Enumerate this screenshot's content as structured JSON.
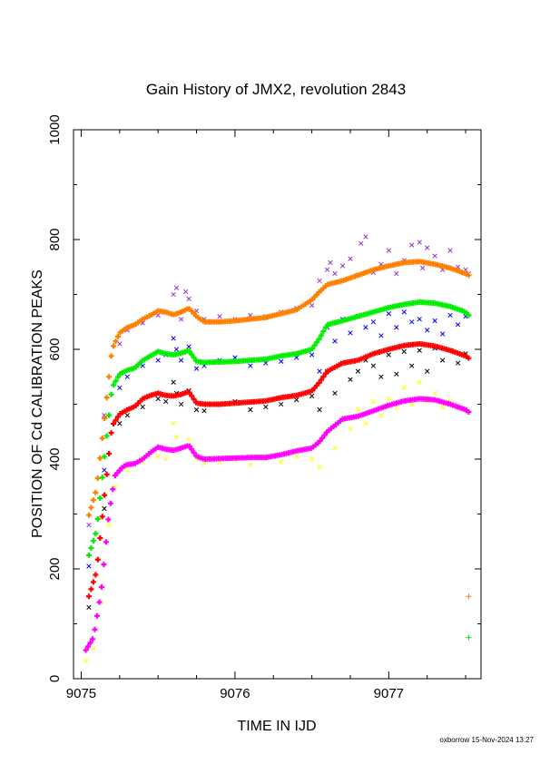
{
  "chart_data": {
    "type": "scatter",
    "title": "Gain History of JMX2, revolution 2843",
    "xlabel": "TIME IN IJD",
    "ylabel": "POSITION OF Cd CALIBRATION PEAKS",
    "xlim": [
      9074.95,
      9077.6
    ],
    "ylim": [
      0,
      1000
    ],
    "xticks": [
      9075,
      9076,
      9077
    ],
    "yticks": [
      0,
      200,
      400,
      600,
      800,
      1000
    ],
    "footer": "oxborrow 15-Nov-2024 13:27",
    "fit_lines": [
      {
        "color": "#ff8000",
        "x": [
          9075.05,
          9075.1,
          9075.15,
          9075.2,
          9075.25,
          9075.3,
          9075.35,
          9075.4,
          9075.45,
          9075.5,
          9075.55,
          9075.6,
          9075.65,
          9075.7,
          9075.75,
          9075.8,
          9075.9,
          9076.0,
          9076.1,
          9076.2,
          9076.3,
          9076.4,
          9076.5,
          9076.55,
          9076.6,
          9076.7,
          9076.8,
          9076.9,
          9077.0,
          9077.1,
          9077.2,
          9077.3,
          9077.4,
          9077.5,
          9077.52
        ],
        "y": [
          298,
          345,
          470,
          600,
          630,
          640,
          645,
          655,
          662,
          670,
          668,
          663,
          668,
          675,
          660,
          650,
          650,
          652,
          655,
          658,
          665,
          672,
          690,
          705,
          718,
          725,
          735,
          745,
          752,
          758,
          760,
          755,
          748,
          738,
          735
        ]
      },
      {
        "color": "#00ee00",
        "x": [
          9075.05,
          9075.1,
          9075.15,
          9075.2,
          9075.25,
          9075.3,
          9075.35,
          9075.4,
          9075.45,
          9075.5,
          9075.55,
          9075.6,
          9075.65,
          9075.7,
          9075.75,
          9075.8,
          9075.9,
          9076.0,
          9076.1,
          9076.2,
          9076.3,
          9076.4,
          9076.5,
          9076.55,
          9076.6,
          9076.7,
          9076.8,
          9076.9,
          9077.0,
          9077.1,
          9077.2,
          9077.3,
          9077.4,
          9077.5,
          9077.52
        ],
        "y": [
          225,
          270,
          400,
          530,
          555,
          562,
          566,
          580,
          588,
          596,
          592,
          590,
          593,
          598,
          578,
          576,
          577,
          578,
          580,
          582,
          588,
          592,
          600,
          620,
          645,
          652,
          660,
          668,
          676,
          682,
          686,
          684,
          678,
          668,
          662
        ]
      },
      {
        "color": "#ff0000",
        "x": [
          9075.05,
          9075.1,
          9075.15,
          9075.2,
          9075.25,
          9075.3,
          9075.35,
          9075.4,
          9075.45,
          9075.5,
          9075.55,
          9075.6,
          9075.65,
          9075.7,
          9075.75,
          9075.8,
          9075.9,
          9076.0,
          9076.1,
          9076.2,
          9076.3,
          9076.4,
          9076.5,
          9076.55,
          9076.6,
          9076.7,
          9076.8,
          9076.9,
          9077.0,
          9077.1,
          9077.2,
          9077.3,
          9077.4,
          9077.5,
          9077.52
        ],
        "y": [
          150,
          195,
          330,
          460,
          482,
          490,
          496,
          510,
          516,
          520,
          516,
          515,
          518,
          523,
          502,
          500,
          500,
          502,
          504,
          506,
          512,
          516,
          524,
          540,
          560,
          575,
          580,
          592,
          600,
          607,
          610,
          606,
          598,
          588,
          584
        ]
      },
      {
        "color": "#ff00ff",
        "x": [
          9075.03,
          9075.08,
          9075.13,
          9075.18,
          9075.22,
          9075.27,
          9075.3,
          9075.35,
          9075.4,
          9075.45,
          9075.5,
          9075.55,
          9075.6,
          9075.65,
          9075.7,
          9075.75,
          9075.8,
          9075.9,
          9076.0,
          9076.1,
          9076.2,
          9076.3,
          9076.4,
          9076.5,
          9076.55,
          9076.6,
          9076.7,
          9076.8,
          9076.9,
          9077.0,
          9077.1,
          9077.2,
          9077.3,
          9077.4,
          9077.5,
          9077.52
        ],
        "y": [
          52,
          75,
          160,
          300,
          370,
          386,
          390,
          392,
          400,
          412,
          422,
          418,
          416,
          420,
          425,
          405,
          400,
          401,
          402,
          403,
          403,
          408,
          415,
          420,
          432,
          450,
          473,
          478,
          488,
          498,
          506,
          510,
          508,
          500,
          490,
          486
        ]
      }
    ],
    "scatter_points": [
      {
        "color": "#9932cc",
        "x": [
          9075.05,
          9075.15,
          9075.25,
          9075.3,
          9075.4,
          9075.5,
          9075.55,
          9075.6,
          9075.62,
          9075.65,
          9075.68,
          9075.7,
          9075.75,
          9075.8,
          9075.9,
          9076.0,
          9076.1,
          9076.2,
          9076.3,
          9076.4,
          9076.5,
          9076.55,
          9076.6,
          9076.62,
          9076.65,
          9076.7,
          9076.75,
          9076.8,
          9076.82,
          9076.85,
          9076.9,
          9076.95,
          9077.0,
          9077.05,
          9077.1,
          9077.15,
          9077.2,
          9077.22,
          9077.25,
          9077.3,
          9077.35,
          9077.4,
          9077.45,
          9077.5,
          9077.52
        ],
        "y": [
          280,
          480,
          610,
          635,
          648,
          662,
          668,
          700,
          712,
          655,
          705,
          692,
          670,
          655,
          660,
          655,
          662,
          660,
          668,
          675,
          680,
          725,
          745,
          758,
          738,
          752,
          765,
          735,
          793,
          805,
          740,
          755,
          780,
          738,
          762,
          790,
          795,
          748,
          785,
          770,
          745,
          780,
          750,
          745,
          738
        ]
      },
      {
        "color": "#0000ff",
        "x": [
          9075.05,
          9075.15,
          9075.25,
          9075.3,
          9075.4,
          9075.5,
          9075.55,
          9075.6,
          9075.62,
          9075.65,
          9075.7,
          9075.75,
          9075.8,
          9075.9,
          9076.0,
          9076.1,
          9076.2,
          9076.3,
          9076.4,
          9076.5,
          9076.55,
          9076.6,
          9076.65,
          9076.7,
          9076.75,
          9076.8,
          9076.85,
          9076.9,
          9076.95,
          9077.0,
          9077.05,
          9077.1,
          9077.15,
          9077.2,
          9077.25,
          9077.3,
          9077.35,
          9077.4,
          9077.45,
          9077.5
        ],
        "y": [
          205,
          380,
          530,
          550,
          570,
          580,
          590,
          620,
          600,
          580,
          605,
          565,
          570,
          580,
          585,
          570,
          575,
          578,
          585,
          590,
          560,
          640,
          615,
          655,
          630,
          660,
          640,
          650,
          625,
          665,
          640,
          668,
          650,
          655,
          635,
          652,
          628,
          662,
          645,
          660
        ]
      },
      {
        "color": "#000000",
        "x": [
          9075.05,
          9075.15,
          9075.25,
          9075.3,
          9075.4,
          9075.5,
          9075.55,
          9075.6,
          9075.62,
          9075.65,
          9075.7,
          9075.75,
          9075.8,
          9075.9,
          9076.0,
          9076.1,
          9076.2,
          9076.3,
          9076.4,
          9076.5,
          9076.55,
          9076.6,
          9076.65,
          9076.7,
          9076.75,
          9076.8,
          9076.85,
          9076.9,
          9076.95,
          9077.0,
          9077.05,
          9077.1,
          9077.15,
          9077.2,
          9077.25,
          9077.3,
          9077.35,
          9077.4,
          9077.45,
          9077.5
        ],
        "y": [
          130,
          310,
          465,
          480,
          495,
          510,
          505,
          540,
          520,
          500,
          525,
          490,
          488,
          500,
          505,
          490,
          495,
          500,
          508,
          515,
          490,
          560,
          520,
          575,
          545,
          560,
          580,
          570,
          550,
          590,
          555,
          596,
          570,
          598,
          560,
          602,
          580,
          598,
          575,
          592
        ]
      },
      {
        "color": "#ffff00",
        "x": [
          9075.03,
          9075.08,
          9075.13,
          9075.18,
          9075.22,
          9075.3,
          9075.4,
          9075.5,
          9075.55,
          9075.6,
          9075.62,
          9075.65,
          9075.7,
          9075.75,
          9075.8,
          9075.9,
          9076.0,
          9076.1,
          9076.2,
          9076.3,
          9076.4,
          9076.5,
          9076.55,
          9076.6,
          9076.65,
          9076.7,
          9076.75,
          9076.8,
          9076.85,
          9076.9,
          9076.95,
          9077.0,
          9077.05,
          9077.1,
          9077.15,
          9077.2,
          9077.25,
          9077.3,
          9077.35,
          9077.4,
          9077.45,
          9077.5
        ],
        "y": [
          32,
          55,
          140,
          280,
          350,
          380,
          395,
          405,
          400,
          465,
          440,
          420,
          435,
          400,
          392,
          395,
          398,
          390,
          400,
          395,
          405,
          400,
          385,
          445,
          420,
          470,
          455,
          490,
          465,
          505,
          480,
          510,
          495,
          530,
          500,
          540,
          505,
          520,
          495,
          505,
          495,
          490
        ]
      }
    ],
    "marker_points": [
      {
        "color": "#ff8000",
        "x": 9077.52,
        "y": 150
      },
      {
        "color": "#00ee00",
        "x": 9077.52,
        "y": 75
      }
    ]
  }
}
